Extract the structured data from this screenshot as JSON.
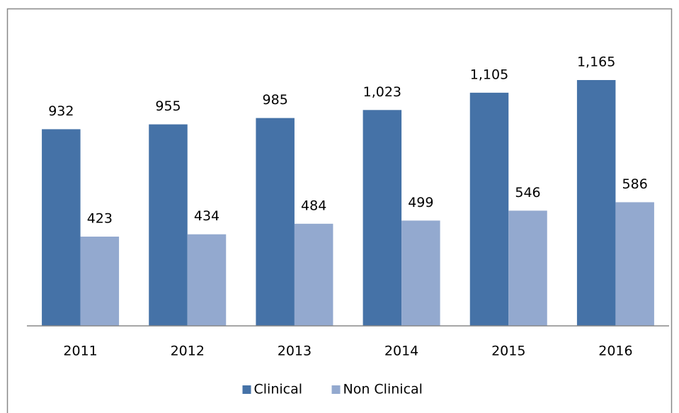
{
  "chart_data": {
    "type": "bar",
    "categories": [
      "2011",
      "2012",
      "2013",
      "2014",
      "2015",
      "2016"
    ],
    "series": [
      {
        "name": "Clinical",
        "color": "#4572a7",
        "values": [
          932,
          955,
          985,
          1023,
          1105,
          1165
        ],
        "value_labels": [
          "932",
          "955",
          "985",
          "1,023",
          "1,105",
          "1,165"
        ]
      },
      {
        "name": "Non Clinical",
        "color": "#93a9cf",
        "values": [
          423,
          434,
          484,
          499,
          546,
          586
        ]
      }
    ],
    "ylim": [
      0,
      1400
    ],
    "legend": "bottom"
  }
}
